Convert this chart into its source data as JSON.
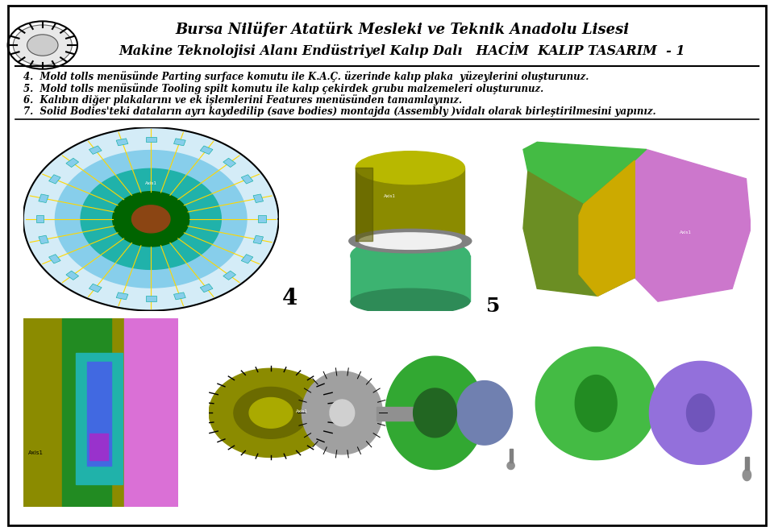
{
  "title_line1": "Bursa Nilüfer Atatürk Mesleki ve Teknik Anadolu Lisesi",
  "title_line2": "Makine Teknolojisi Alanı Endüstriyel Kalıp Dalı   HACİM  KALIP TASARIM  - 1",
  "text_items": [
    "4.  Mold tolls menüsünde Parting surface komutu ile K.A.Ç. üzerinde kalıp plaka  yüzeylerini oluşturunuz.",
    "5.  Mold tolls menüsünde Tooling spilt komutu ile kalıp çekirdek grubu malzemeleri oluşturunuz.",
    "6.  Kalıbın diğer plakalarını ve ek işlemlerini Features menüsünden tamamlayınız.",
    "7.  Solid Bodies'teki dataların ayrı kaydedilip (save bodies) montajda (Assembly )vidalı olarak birleştirilmesini yapınız."
  ],
  "background_color": "#ffffff",
  "title_color": "#000000",
  "text_color": "#000000",
  "border_color": "#000000"
}
